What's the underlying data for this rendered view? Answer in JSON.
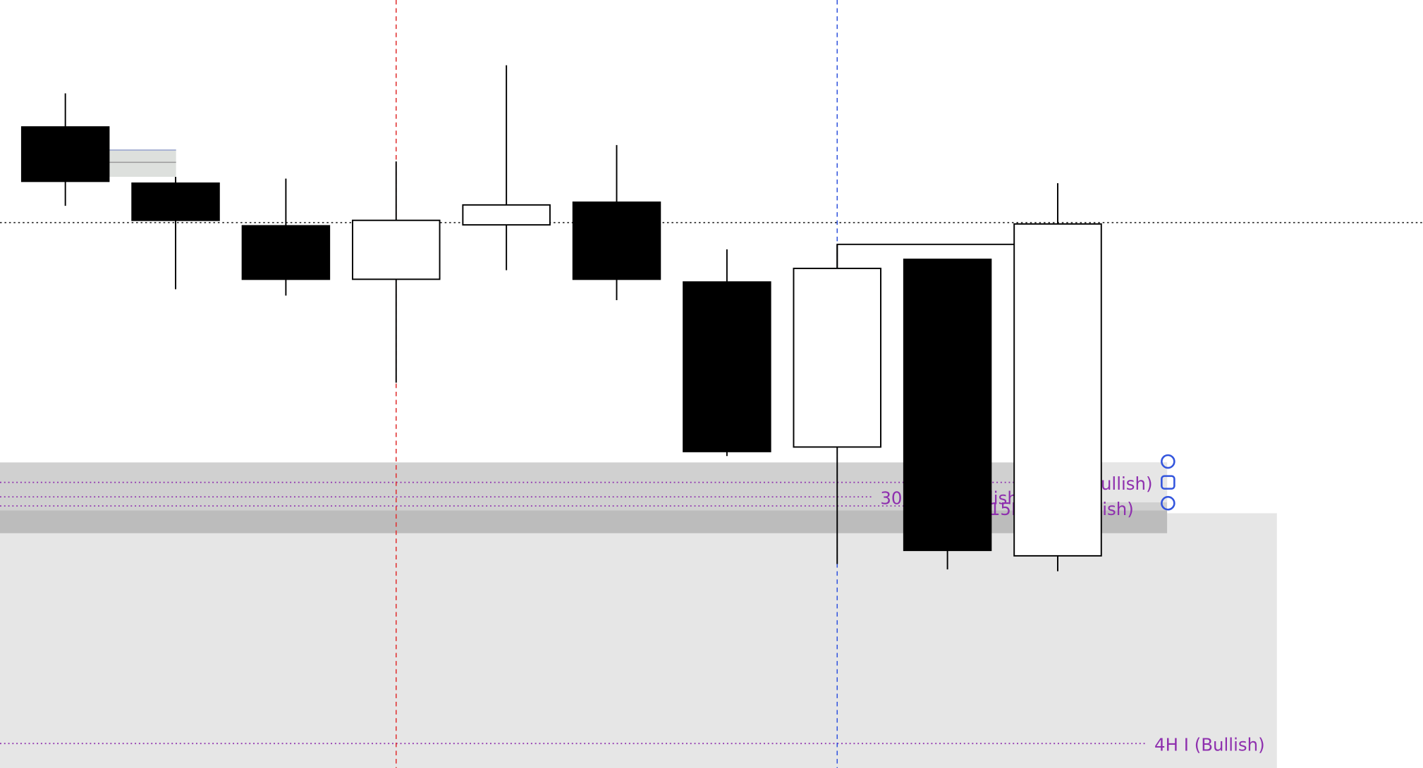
{
  "chart_data": {
    "type": "candlestick",
    "note_units": "relative price (no price axis shown)",
    "candles": [
      {
        "open": 860,
        "high": 897,
        "low": 773,
        "close": 800
      },
      {
        "open": 798,
        "high": 805,
        "low": 681,
        "close": 757
      },
      {
        "open": 751,
        "high": 803,
        "low": 674,
        "close": 692
      },
      {
        "open": 692,
        "high": 822,
        "low": 578,
        "close": 757
      },
      {
        "open": 752,
        "high": 928,
        "low": 702,
        "close": 774
      },
      {
        "open": 777,
        "high": 840,
        "low": 669,
        "close": 692
      },
      {
        "open": 689,
        "high": 725,
        "low": 497,
        "close": 502
      },
      {
        "open": 507,
        "high": 730,
        "low": 378,
        "close": 704
      },
      {
        "open": 714,
        "high": 714,
        "low": 372,
        "close": 393
      },
      {
        "open": 387,
        "high": 798,
        "low": 370,
        "close": 753
      }
    ],
    "colors": {
      "bull": "#ffffff",
      "bear": "#000000",
      "label": "#8e2fae",
      "handle": "#3355dd",
      "red_line": "#e03030",
      "blue_line": "#3355dd"
    },
    "levels": [
      {
        "label": "1H IRT (Bullish)",
        "price": 468
      },
      {
        "label": "30M IRT (Bullish)",
        "price": 452
      },
      {
        "label": "15M IRT (Bullish)",
        "price": 442
      },
      {
        "label": "4H I (Bullish)",
        "price": 180
      }
    ],
    "current_price": 755,
    "grid": false
  }
}
